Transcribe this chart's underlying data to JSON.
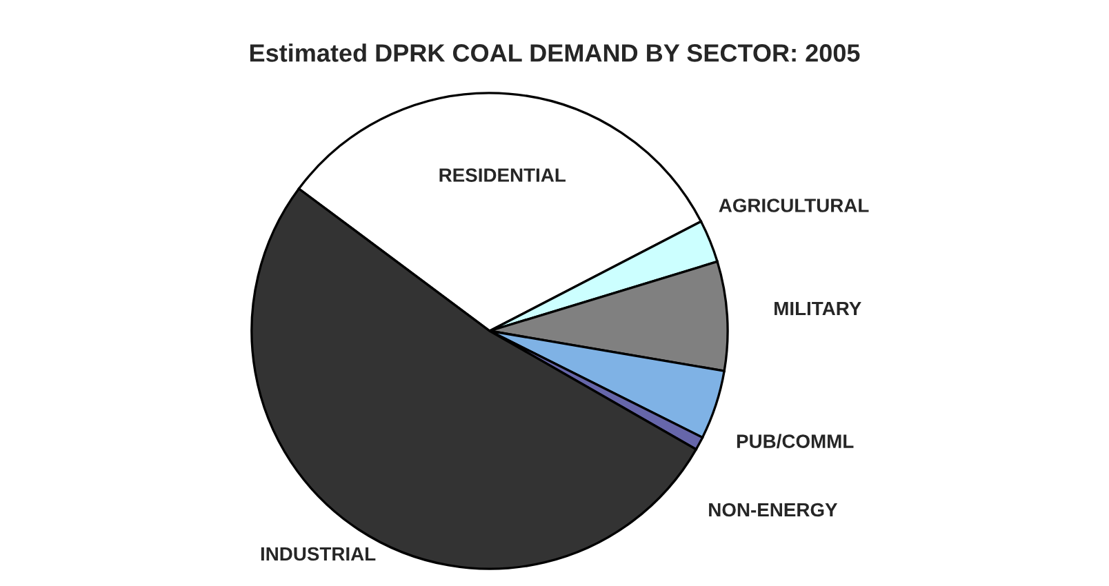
{
  "chart_data": {
    "type": "pie",
    "title": "Estimated DPRK COAL DEMAND BY SECTOR: 2005",
    "categories": [
      "RESIDENTIAL",
      "AGRICULTURAL",
      "MILITARY",
      "PUB/COMML",
      "NON-ENERGY",
      "INDUSTRIAL"
    ],
    "values": [
      32.2,
      2.9,
      7.4,
      4.7,
      0.9,
      51.9
    ],
    "colors": [
      "#ffffff",
      "#ccffff",
      "#808080",
      "#7fb2e5",
      "#6666aa",
      "#333333"
    ]
  }
}
